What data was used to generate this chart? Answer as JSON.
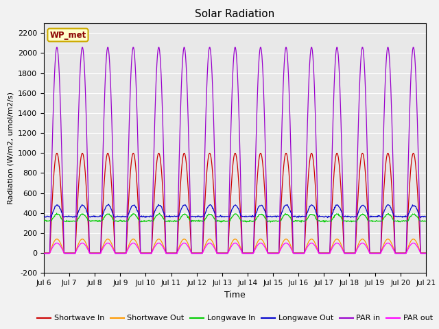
{
  "title": "Solar Radiation",
  "ylabel": "Radiation (W/m2, umol/m2/s)",
  "xlabel": "Time",
  "xlim_days": [
    6,
    21
  ],
  "ylim": [
    -200,
    2300
  ],
  "yticks": [
    -200,
    0,
    200,
    400,
    600,
    800,
    1000,
    1200,
    1400,
    1600,
    1800,
    2000,
    2200
  ],
  "xtick_days": [
    6,
    7,
    8,
    9,
    10,
    11,
    12,
    13,
    14,
    15,
    16,
    17,
    18,
    19,
    20,
    21
  ],
  "background_color": "#e8e8e8",
  "fig_background": "#f2f2f2",
  "grid_color": "#ffffff",
  "station_label": "WP_met",
  "series": {
    "shortwave_in": {
      "color": "#cc0000",
      "label": "Shortwave In"
    },
    "shortwave_out": {
      "color": "#ff9900",
      "label": "Shortwave Out"
    },
    "longwave_in": {
      "color": "#00cc00",
      "label": "Longwave In"
    },
    "longwave_out": {
      "color": "#0000cc",
      "label": "Longwave Out"
    },
    "par_in": {
      "color": "#9900cc",
      "label": "PAR in"
    },
    "par_out": {
      "color": "#ff00ff",
      "label": "PAR out"
    }
  },
  "n_days": 15,
  "start_day": 6
}
